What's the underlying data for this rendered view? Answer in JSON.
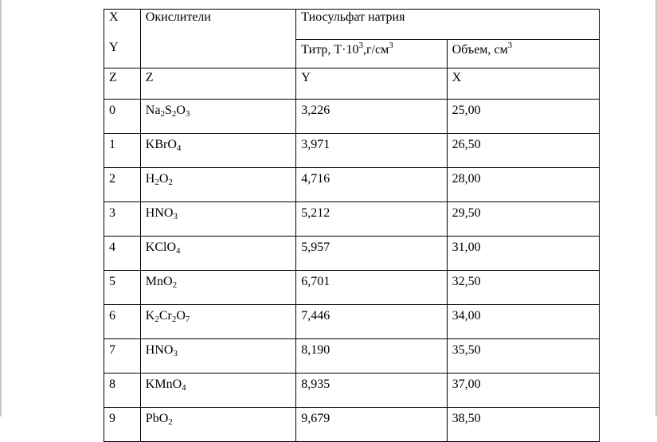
{
  "header": {
    "axes": [
      "X",
      "Y",
      "Z"
    ],
    "oxidizers_label": "Окислители",
    "thiosulfate_label": "Тиосульфат натрия",
    "titr_label": "Титр, T·10³,г/см³",
    "volume_label": "Объем, см³"
  },
  "axis_row": {
    "col1": "Z",
    "col2": "Z",
    "col3": "Y",
    "col4": "X"
  },
  "rows": [
    {
      "index": "0",
      "oxidizer": "Na₂S₂O₃",
      "titr": "3,226",
      "volume": "25,00"
    },
    {
      "index": "1",
      "oxidizer": "KBrO₄",
      "titr": "3,971",
      "volume": "26,50"
    },
    {
      "index": "2",
      "oxidizer": "H₂O₂",
      "titr": "4,716",
      "volume": "28,00"
    },
    {
      "index": "3",
      "oxidizer": "HNO₃",
      "titr": "5,212",
      "volume": "29,50"
    },
    {
      "index": "4",
      "oxidizer": "KClO₄",
      "titr": "5,957",
      "volume": "31,00"
    },
    {
      "index": "5",
      "oxidizer": "MnO₂",
      "titr": "6,701",
      "volume": "32,50"
    },
    {
      "index": "6",
      "oxidizer": "K₂Cr₂O₇",
      "titr": "7,446",
      "volume": "34,00"
    },
    {
      "index": "7",
      "oxidizer": "HNO₃",
      "titr": "8,190",
      "volume": "35,50"
    },
    {
      "index": "8",
      "oxidizer": "KMnO₄",
      "titr": "8,935",
      "volume": "37,00"
    },
    {
      "index": "9",
      "oxidizer": "PbO₂",
      "titr": "9,679",
      "volume": "38,50"
    }
  ]
}
